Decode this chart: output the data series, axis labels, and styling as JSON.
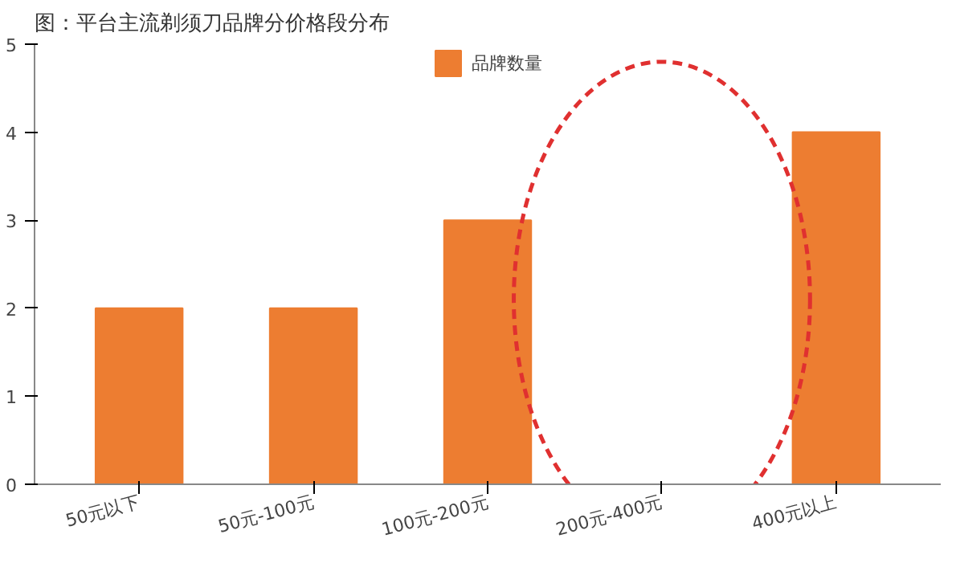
{
  "chart_data": {
    "type": "bar",
    "title": "图：平台主流剃须刀品牌分价格段分布",
    "categories": [
      "50元以下",
      "50元-100元",
      "100元-200元",
      "200元-400元",
      "400元以上"
    ],
    "series": [
      {
        "name": "品牌数量",
        "color": "#ed7d31",
        "values": [
          2,
          2,
          3,
          0,
          4
        ]
      }
    ],
    "ylim": [
      0,
      5
    ],
    "yticks": [
      0,
      1,
      2,
      3,
      4,
      5
    ],
    "grid": false,
    "legend": "top"
  }
}
